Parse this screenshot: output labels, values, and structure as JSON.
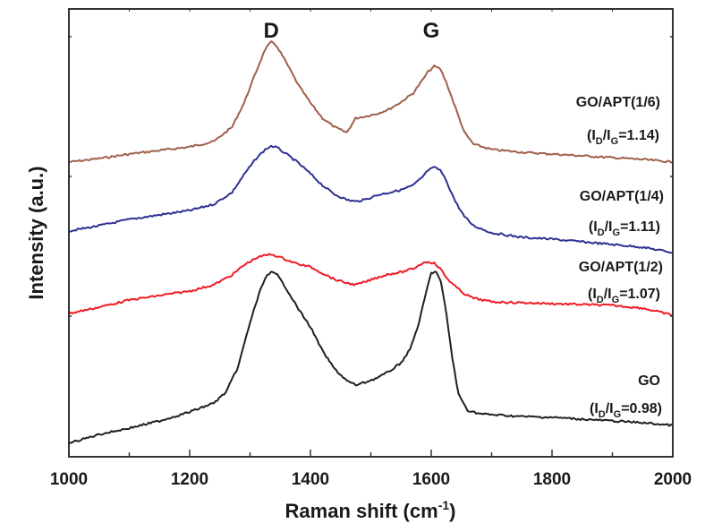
{
  "chart_data": {
    "type": "line",
    "title": "",
    "xlabel": "Raman shift (cm",
    "xlabel_superscript": "-1",
    "xlabel_suffix": ")",
    "ylabel": "Intensity (a.u.)",
    "xlim": [
      1000,
      2000
    ],
    "ylim": [
      0,
      500
    ],
    "xticks": [
      1000,
      1200,
      1400,
      1600,
      1800,
      2000
    ],
    "xticks_minor": [
      1100,
      1300,
      1500,
      1700,
      1900
    ],
    "yticks_visible_labels": false,
    "grid": false,
    "peak_labels": [
      {
        "text": "D",
        "x": 1335
      },
      {
        "text": "G",
        "x": 1600
      }
    ],
    "series": [
      {
        "name": "GO/APT(1/6)",
        "ratio_label": "=1.14",
        "color": "#a0604a",
        "x": [
          1000,
          1050,
          1100,
          1150,
          1200,
          1240,
          1270,
          1290,
          1310,
          1325,
          1335,
          1345,
          1360,
          1380,
          1400,
          1420,
          1440,
          1460,
          1475,
          1490,
          1510,
          1530,
          1550,
          1570,
          1585,
          1595,
          1605,
          1615,
          1625,
          1640,
          1655,
          1670,
          1700,
          1750,
          1800,
          1850,
          1900,
          1950,
          2000
        ],
        "values": [
          329,
          333,
          338,
          342,
          346,
          352,
          368,
          395,
          430,
          455,
          463,
          458,
          440,
          415,
          395,
          378,
          368,
          362,
          378,
          380,
          383,
          388,
          396,
          406,
          420,
          430,
          436,
          433,
          418,
          390,
          362,
          349,
          343,
          340,
          338,
          336,
          334,
          332,
          329
        ]
      },
      {
        "name": "GO/APT(1/4)",
        "ratio_label": "=1.11",
        "color": "#2e3192",
        "x": [
          1000,
          1050,
          1100,
          1150,
          1200,
          1240,
          1270,
          1290,
          1310,
          1325,
          1335,
          1345,
          1360,
          1380,
          1400,
          1420,
          1440,
          1460,
          1475,
          1490,
          1510,
          1530,
          1550,
          1570,
          1585,
          1595,
          1605,
          1615,
          1625,
          1640,
          1655,
          1670,
          1700,
          1750,
          1800,
          1850,
          1900,
          1950,
          2000
        ],
        "values": [
          252,
          258,
          265,
          270,
          275,
          282,
          295,
          315,
          333,
          343,
          347,
          345,
          338,
          328,
          316,
          303,
          293,
          287,
          285,
          287,
          292,
          295,
          298,
          303,
          312,
          320,
          323,
          320,
          308,
          285,
          268,
          258,
          250,
          245,
          243,
          240,
          237,
          234,
          228
        ]
      },
      {
        "name": "GO/APT(1/2)",
        "ratio_label": "=1.07",
        "color": "#ed1c24",
        "x": [
          1000,
          1050,
          1100,
          1150,
          1200,
          1240,
          1270,
          1290,
          1310,
          1325,
          1335,
          1345,
          1360,
          1380,
          1400,
          1420,
          1440,
          1460,
          1475,
          1490,
          1510,
          1530,
          1550,
          1570,
          1585,
          1595,
          1605,
          1615,
          1625,
          1640,
          1655,
          1670,
          1700,
          1750,
          1800,
          1850,
          1900,
          1950,
          2000
        ],
        "values": [
          160,
          167,
          175,
          180,
          185,
          192,
          203,
          214,
          222,
          225,
          226,
          224,
          220,
          215,
          212,
          205,
          198,
          194,
          192,
          195,
          200,
          204,
          206,
          210,
          216,
          218,
          216,
          210,
          200,
          190,
          182,
          177,
          173,
          172,
          171,
          170,
          169,
          166,
          158
        ]
      },
      {
        "name": "GO",
        "ratio_label": "=0.98",
        "color": "#231f20",
        "x": [
          1000,
          1050,
          1100,
          1150,
          1200,
          1240,
          1260,
          1280,
          1300,
          1315,
          1325,
          1335,
          1345,
          1360,
          1380,
          1400,
          1420,
          1440,
          1460,
          1475,
          1490,
          1510,
          1530,
          1550,
          1565,
          1580,
          1592,
          1600,
          1608,
          1616,
          1625,
          1635,
          1645,
          1660,
          1680,
          1700,
          1750,
          1800,
          1850,
          1900,
          1950,
          2000
        ],
        "values": [
          15,
          25,
          32,
          40,
          50,
          60,
          72,
          100,
          150,
          182,
          200,
          206,
          203,
          188,
          165,
          145,
          118,
          98,
          85,
          80,
          83,
          88,
          95,
          105,
          120,
          150,
          185,
          205,
          207,
          195,
          160,
          110,
          70,
          52,
          48,
          47,
          45,
          44,
          42,
          40,
          38,
          35
        ]
      }
    ]
  }
}
